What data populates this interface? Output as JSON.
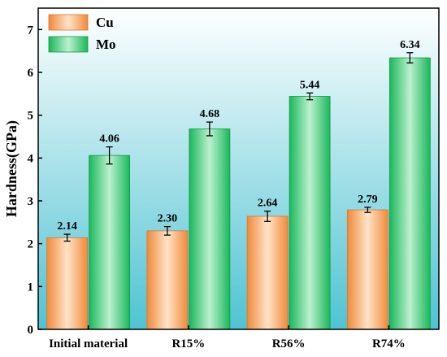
{
  "chart_data": {
    "type": "bar",
    "title": "",
    "xlabel": "",
    "ylabel": "Hardness(GPa)",
    "ylim": [
      0,
      7.5
    ],
    "yticks": [
      "0",
      "1",
      "2",
      "3",
      "4",
      "5",
      "6",
      "7"
    ],
    "categories": [
      "Initial material",
      "R15%",
      "R56%",
      "R74%"
    ],
    "legend_position": "top-left",
    "grid": false,
    "background": "vertical-gradient",
    "colors": {
      "background_top": "#ffffff",
      "background_bottom": "#4fc3d3",
      "cu_light": "#ffe3c8",
      "cu_dark": "#f08a3a",
      "mo_light": "#bdf0cf",
      "mo_dark": "#19b85a"
    },
    "series": [
      {
        "name": "Cu",
        "values": [
          2.14,
          2.3,
          2.64,
          2.79
        ],
        "errors": [
          0.08,
          0.1,
          0.12,
          0.06
        ],
        "labels": [
          "2.14",
          "2.30",
          "2.64",
          "2.79"
        ]
      },
      {
        "name": "Mo",
        "values": [
          4.06,
          4.68,
          5.44,
          6.34
        ],
        "errors": [
          0.2,
          0.16,
          0.08,
          0.12
        ],
        "labels": [
          "4.06",
          "4.68",
          "5.44",
          "6.34"
        ]
      }
    ]
  }
}
